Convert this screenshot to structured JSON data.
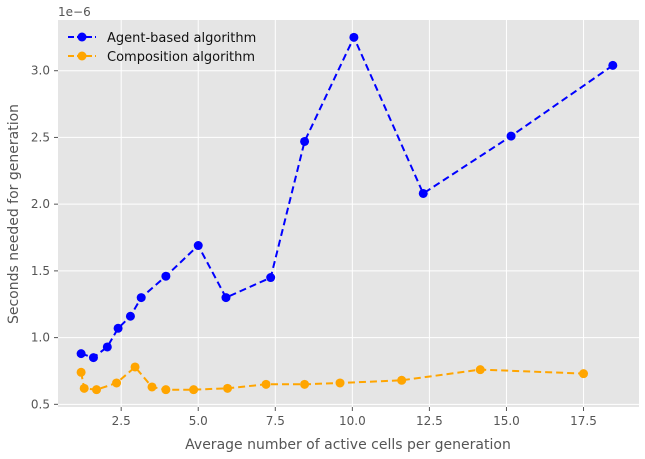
{
  "chart_data": {
    "type": "line",
    "title": "",
    "xlabel": "Average number of active cells per generation",
    "ylabel": "Seconds needed for generation",
    "y_offset_label": "1e−6",
    "xlim": [
      0.45,
      19.3
    ],
    "ylim": [
      0.48,
      3.38
    ],
    "xticks": [
      2.5,
      5.0,
      7.5,
      10.0,
      12.5,
      15.0,
      17.5
    ],
    "xtick_labels": [
      "2.5",
      "5.0",
      "7.5",
      "10.0",
      "12.5",
      "15.0",
      "17.5"
    ],
    "yticks": [
      0.5,
      1.0,
      1.5,
      2.0,
      2.5,
      3.0
    ],
    "ytick_labels": [
      "0.5",
      "1.0",
      "1.5",
      "2.0",
      "2.5",
      "3.0"
    ],
    "grid": true,
    "legend_position": "top-left",
    "series": [
      {
        "name": "Agent-based algorithm",
        "color": "#0000ff",
        "x": [
          1.2,
          1.6,
          2.05,
          2.4,
          2.8,
          3.15,
          3.95,
          5.0,
          5.9,
          7.35,
          8.45,
          10.05,
          12.3,
          15.15,
          18.45
        ],
        "y": [
          0.88,
          0.85,
          0.93,
          1.07,
          1.16,
          1.3,
          1.46,
          1.69,
          1.3,
          1.45,
          2.47,
          3.25,
          2.08,
          2.51,
          3.04
        ]
      },
      {
        "name": "Composition algorithm",
        "color": "#ffa500",
        "x": [
          1.2,
          1.3,
          1.7,
          2.35,
          2.95,
          3.5,
          3.95,
          4.85,
          5.95,
          7.2,
          8.45,
          9.6,
          11.6,
          14.15,
          17.5
        ],
        "y": [
          0.74,
          0.62,
          0.61,
          0.66,
          0.78,
          0.63,
          0.61,
          0.61,
          0.62,
          0.65,
          0.65,
          0.66,
          0.68,
          0.76,
          0.73
        ]
      }
    ]
  }
}
